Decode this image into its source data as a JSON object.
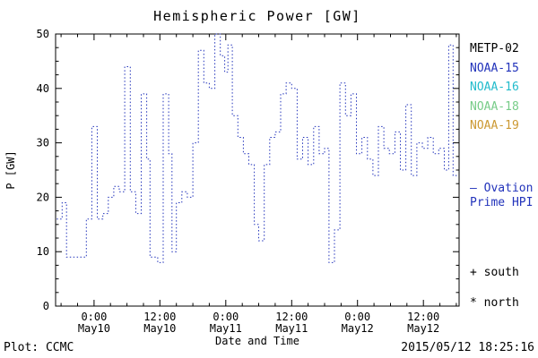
{
  "chart_data": {
    "type": "line",
    "style": "steps-dotted",
    "title": "Hemispheric Power [GW]",
    "xlabel": "Date and Time",
    "ylabel": "P [GW]",
    "ylim": [
      0,
      50
    ],
    "yticks": [
      0,
      10,
      20,
      30,
      40,
      50
    ],
    "y_minor_step": 2.5,
    "x_range": [
      -7,
      66.5
    ],
    "x_end": 66.2,
    "x_minor_step": 3,
    "grid": false,
    "legend_position": "right-outside",
    "line_color": "#2233bb",
    "xticks": [
      {
        "hour": 0,
        "time": "0:00",
        "date": "May10"
      },
      {
        "hour": 12,
        "time": "12:00",
        "date": "May10"
      },
      {
        "hour": 24,
        "time": "0:00",
        "date": "May11"
      },
      {
        "hour": 36,
        "time": "12:00",
        "date": "May11"
      },
      {
        "hour": 48,
        "time": "0:00",
        "date": "May12"
      },
      {
        "hour": 60,
        "time": "12:00",
        "date": "May12"
      }
    ],
    "points": [
      [
        -6.8,
        16
      ],
      [
        -5.8,
        19
      ],
      [
        -5.0,
        9
      ],
      [
        -2.2,
        9
      ],
      [
        -1.4,
        16
      ],
      [
        -0.4,
        33
      ],
      [
        0.6,
        16
      ],
      [
        1.6,
        17
      ],
      [
        2.6,
        20
      ],
      [
        3.6,
        22
      ],
      [
        4.6,
        21
      ],
      [
        5.6,
        44
      ],
      [
        6.6,
        21
      ],
      [
        7.6,
        17
      ],
      [
        8.6,
        39
      ],
      [
        9.6,
        27
      ],
      [
        10.2,
        9
      ],
      [
        11.6,
        8
      ],
      [
        12.6,
        39
      ],
      [
        13.6,
        28
      ],
      [
        14.2,
        10
      ],
      [
        15.0,
        19
      ],
      [
        16.0,
        21
      ],
      [
        17.0,
        20
      ],
      [
        18.0,
        30
      ],
      [
        19.0,
        47
      ],
      [
        20.0,
        41
      ],
      [
        21.0,
        40
      ],
      [
        22.0,
        50
      ],
      [
        23.0,
        46
      ],
      [
        23.8,
        43
      ],
      [
        24.4,
        48
      ],
      [
        25.2,
        35
      ],
      [
        26.2,
        31
      ],
      [
        27.2,
        28
      ],
      [
        28.2,
        26
      ],
      [
        29.2,
        15
      ],
      [
        30.0,
        12
      ],
      [
        31.0,
        26
      ],
      [
        32.0,
        31
      ],
      [
        33.0,
        32
      ],
      [
        34.0,
        39
      ],
      [
        35.0,
        41
      ],
      [
        36.0,
        40
      ],
      [
        37.0,
        27
      ],
      [
        38.0,
        31
      ],
      [
        39.0,
        26
      ],
      [
        40.0,
        33
      ],
      [
        41.0,
        28
      ],
      [
        42.0,
        29
      ],
      [
        42.8,
        8
      ],
      [
        43.8,
        14
      ],
      [
        44.8,
        41
      ],
      [
        45.8,
        35
      ],
      [
        46.8,
        39
      ],
      [
        47.8,
        28
      ],
      [
        48.8,
        31
      ],
      [
        49.8,
        27
      ],
      [
        50.8,
        24
      ],
      [
        51.8,
        33
      ],
      [
        52.8,
        29
      ],
      [
        53.8,
        28
      ],
      [
        54.8,
        32
      ],
      [
        55.8,
        25
      ],
      [
        56.8,
        37
      ],
      [
        57.8,
        24
      ],
      [
        58.8,
        30
      ],
      [
        59.8,
        29
      ],
      [
        60.8,
        31
      ],
      [
        61.8,
        28
      ],
      [
        62.8,
        29
      ],
      [
        63.8,
        25
      ],
      [
        64.6,
        48
      ],
      [
        65.4,
        24
      ]
    ]
  },
  "legend": {
    "satellites": [
      {
        "label": "METP-02",
        "color": "#000000"
      },
      {
        "label": "NOAA-15",
        "color": "#2233bb"
      },
      {
        "label": "NOAA-16",
        "color": "#22bccc"
      },
      {
        "label": "NOAA-18",
        "color": "#77cc88"
      },
      {
        "label": "NOAA-19",
        "color": "#cc9933"
      }
    ],
    "ovation_dash": "—",
    "ovation_label": "Ovation Prime HPI",
    "ovation_color": "#2233bb",
    "south_label": "+ south",
    "north_label": "* north"
  },
  "footer": {
    "left": "Plot: CCMC",
    "right": "2015/05/12 18:25:16"
  }
}
